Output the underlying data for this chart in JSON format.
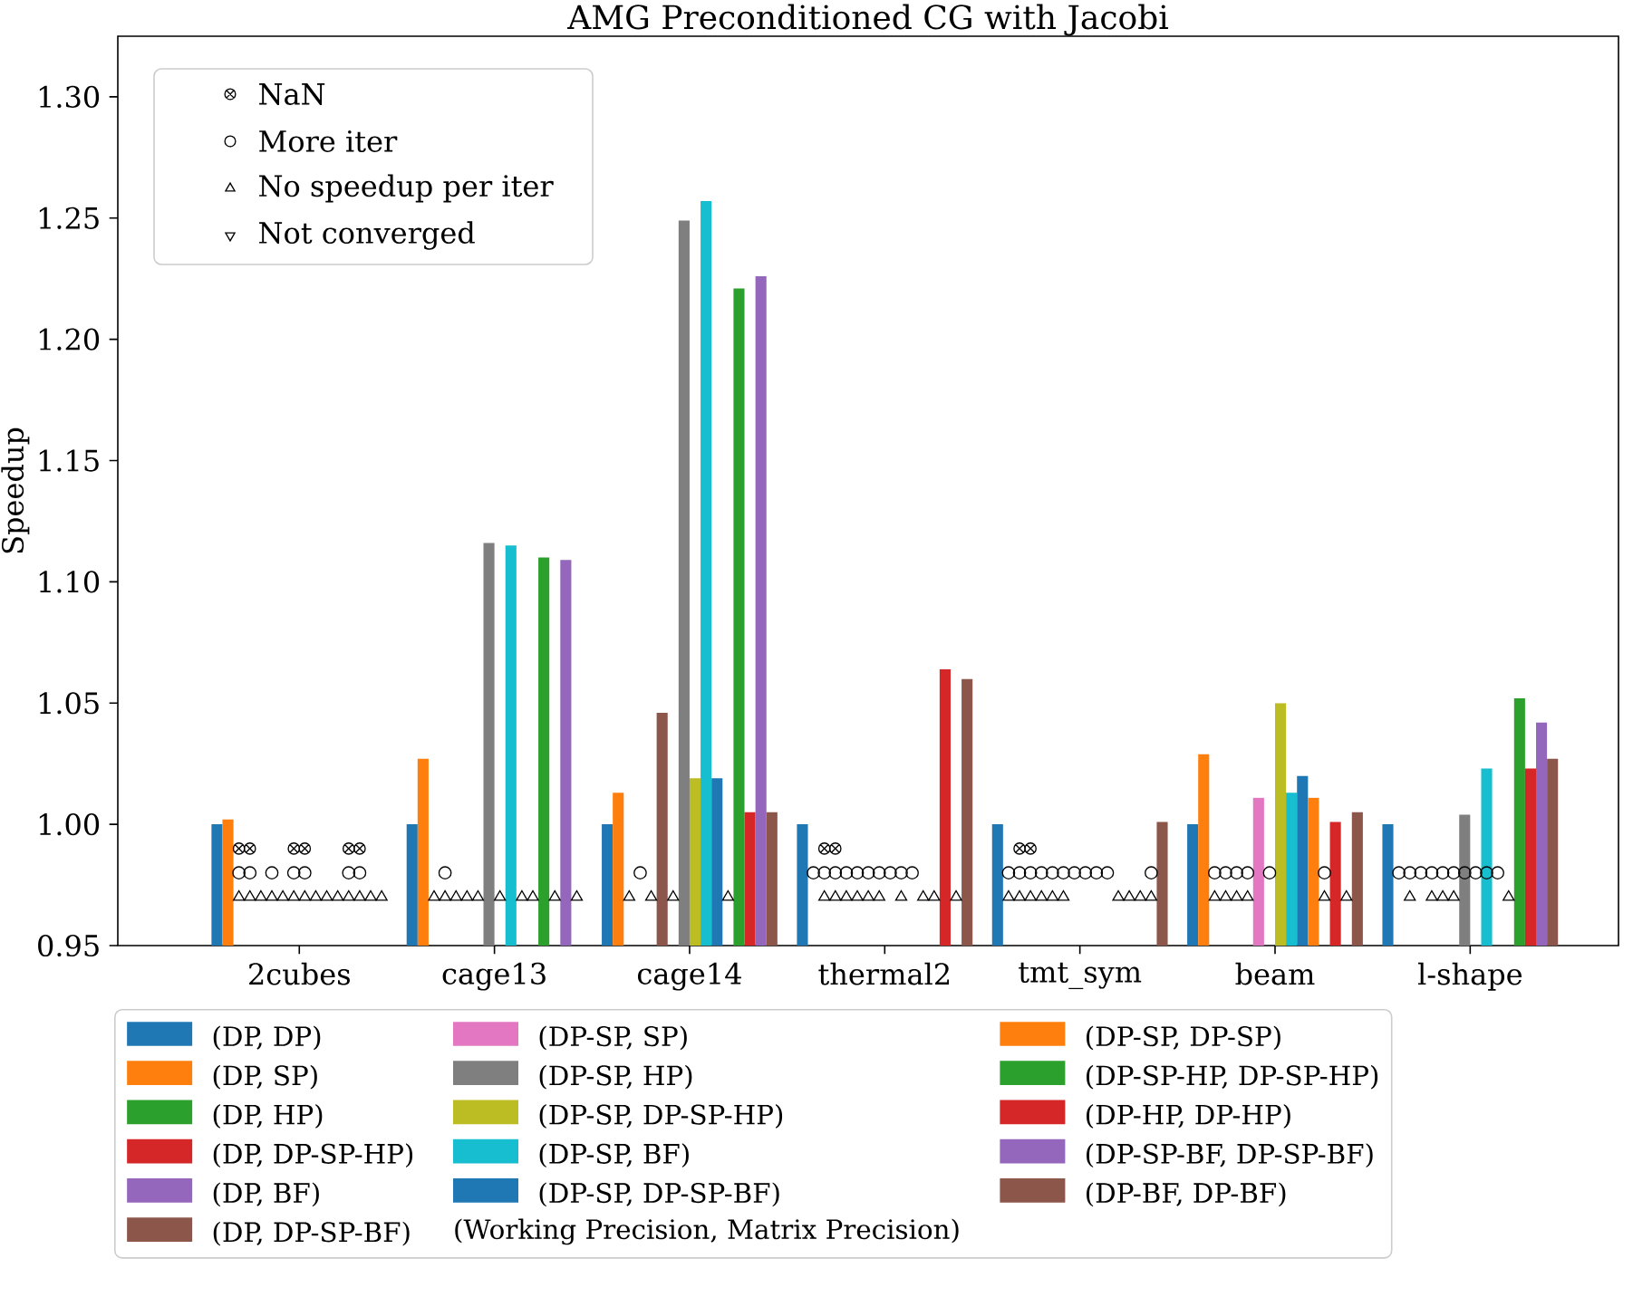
{
  "chart_data": {
    "type": "bar",
    "title": "AMG Preconditioned CG with Jacobi",
    "ylabel": "Speedup",
    "categories": [
      "2cubes",
      "cage13",
      "cage14",
      "thermal2",
      "tmt_sym",
      "beam",
      "l-shape"
    ],
    "ylim": [
      0.95,
      1.325
    ],
    "yticks": [
      {
        "value": 0.95,
        "label": "0.95"
      },
      {
        "value": 1.0,
        "label": "1.00"
      },
      {
        "value": 1.05,
        "label": "1.05"
      },
      {
        "value": 1.1,
        "label": "1.10"
      },
      {
        "value": 1.15,
        "label": "1.15"
      },
      {
        "value": 1.2,
        "label": "1.20"
      },
      {
        "value": 1.25,
        "label": "1.25"
      },
      {
        "value": 1.3,
        "label": "1.30"
      }
    ],
    "legend": "bottom",
    "legend_title": "(Working Precision, Matrix Precision)",
    "series": [
      {
        "name": "(DP, DP)",
        "color": "#1f77b4",
        "values": [
          1.0,
          1.0,
          1.0,
          1.0,
          1.0,
          1.0,
          1.0
        ]
      },
      {
        "name": "(DP, SP)",
        "color": "#ff7f0e",
        "values": [
          1.002,
          1.027,
          1.013,
          null,
          null,
          1.029,
          null
        ]
      },
      {
        "name": "(DP, HP)",
        "color": "#2ca02c",
        "values": [
          null,
          null,
          null,
          null,
          null,
          null,
          null
        ]
      },
      {
        "name": "(DP, DP-SP-HP)",
        "color": "#d62728",
        "values": [
          null,
          null,
          null,
          null,
          null,
          null,
          null
        ]
      },
      {
        "name": "(DP, BF)",
        "color": "#9467bd",
        "values": [
          null,
          null,
          null,
          null,
          null,
          null,
          null
        ]
      },
      {
        "name": "(DP, DP-SP-BF)",
        "color": "#8c564b",
        "values": [
          null,
          null,
          1.046,
          null,
          null,
          null,
          null
        ]
      },
      {
        "name": "(DP-SP, SP)",
        "color": "#e377c2",
        "values": [
          null,
          null,
          null,
          null,
          null,
          1.011,
          null
        ]
      },
      {
        "name": "(DP-SP, HP)",
        "color": "#7f7f7f",
        "values": [
          null,
          1.116,
          1.249,
          null,
          null,
          null,
          1.004
        ]
      },
      {
        "name": "(DP-SP, DP-SP-HP)",
        "color": "#bcbd22",
        "values": [
          null,
          null,
          1.019,
          null,
          null,
          1.05,
          null
        ]
      },
      {
        "name": "(DP-SP, BF)",
        "color": "#17becf",
        "values": [
          null,
          1.115,
          1.257,
          null,
          null,
          1.013,
          1.023
        ]
      },
      {
        "name": "(DP-SP, DP-SP-BF)",
        "color": "#1f77b4",
        "values": [
          null,
          null,
          1.019,
          null,
          null,
          1.02,
          null
        ]
      },
      {
        "name": "(DP-SP, DP-SP)",
        "color": "#ff7f0e",
        "values": [
          null,
          null,
          null,
          null,
          null,
          1.011,
          null
        ]
      },
      {
        "name": "(DP-SP-HP, DP-SP-HP)",
        "color": "#2ca02c",
        "values": [
          null,
          1.11,
          1.221,
          null,
          null,
          null,
          1.052
        ]
      },
      {
        "name": "(DP-HP, DP-HP)",
        "color": "#d62728",
        "values": [
          null,
          null,
          1.005,
          1.064,
          null,
          1.001,
          1.023
        ]
      },
      {
        "name": "(DP-SP-BF, DP-SP-BF)",
        "color": "#9467bd",
        "values": [
          null,
          1.109,
          1.226,
          null,
          null,
          null,
          1.042
        ]
      },
      {
        "name": "(DP-BF, DP-BF)",
        "color": "#8c564b",
        "values": [
          null,
          null,
          1.005,
          1.06,
          1.001,
          1.005,
          1.027
        ]
      },
      {
        "name": "NaN",
        "type": "scatter",
        "marker": "cross",
        "color": "#000000",
        "x": [
          "2cubes",
          "2cubes",
          "2cubes",
          "2cubes",
          "2cubes",
          "2cubes",
          "2cubes",
          "2cubes",
          "2cubes",
          "2cubes",
          "2cubes",
          "2cubes",
          "2cubes",
          "2cubes",
          "thermal2",
          "thermal2",
          "thermal2",
          "thermal2",
          "tmt_sym",
          "tmt_sym",
          "tmt_sym",
          "tmt_sym"
        ],
        "values": [
          null,
          null,
          0.99,
          0.99,
          null,
          null,
          null,
          0.99,
          0.99,
          null,
          null,
          null,
          0.99,
          0.99,
          null,
          null,
          0.99,
          0.99,
          null,
          null,
          0.99,
          0.99
        ]
      },
      {
        "name": "More iter",
        "type": "scatter",
        "marker": "circle",
        "color": "#000000",
        "x": [
          "2cubes",
          "2cubes",
          "2cubes",
          "2cubes",
          "2cubes",
          "2cubes",
          "2cubes",
          "2cubes",
          "2cubes",
          "2cubes",
          "2cubes",
          "2cubes",
          "2cubes",
          "2cubes",
          "cage13",
          "cage13",
          "cage13",
          "cage13",
          "cage14",
          "cage14",
          "cage14",
          "cage14",
          "thermal2",
          "thermal2",
          "thermal2",
          "thermal2",
          "thermal2",
          "thermal2",
          "thermal2",
          "thermal2",
          "thermal2",
          "thermal2",
          "thermal2",
          "tmt_sym",
          "tmt_sym",
          "tmt_sym",
          "tmt_sym",
          "tmt_sym",
          "tmt_sym",
          "tmt_sym",
          "tmt_sym",
          "tmt_sym",
          "tmt_sym",
          "tmt_sym",
          "tmt_sym",
          "tmt_sym",
          "tmt_sym",
          "tmt_sym",
          "beam",
          "beam",
          "beam",
          "beam",
          "beam",
          "beam",
          "beam",
          "beam",
          "beam",
          "beam",
          "beam",
          "beam",
          "beam",
          "l-shape",
          "l-shape",
          "l-shape",
          "l-shape",
          "l-shape",
          "l-shape",
          "l-shape",
          "l-shape",
          "l-shape",
          "l-shape",
          "l-shape"
        ],
        "values": [
          null,
          null,
          0.98,
          0.98,
          null,
          0.98,
          null,
          0.98,
          0.98,
          null,
          null,
          null,
          0.98,
          0.98,
          null,
          null,
          null,
          0.98,
          null,
          null,
          null,
          0.98,
          null,
          0.98,
          0.98,
          0.98,
          0.98,
          0.98,
          0.98,
          0.98,
          0.98,
          0.98,
          0.98,
          null,
          0.98,
          0.98,
          0.98,
          0.98,
          0.98,
          0.98,
          0.98,
          0.98,
          0.98,
          0.98,
          null,
          null,
          null,
          0.98,
          null,
          null,
          0.98,
          0.98,
          0.98,
          0.98,
          null,
          0.98,
          null,
          null,
          null,
          null,
          0.98,
          null,
          0.98,
          0.98,
          0.98,
          0.98,
          0.98,
          0.98,
          0.98,
          0.98,
          0.98,
          0.98
        ]
      },
      {
        "name": "No speedup per iter",
        "type": "scatter",
        "marker": "triangle",
        "color": "#000000",
        "x": [
          "2cubes",
          "2cubes",
          "2cubes",
          "2cubes",
          "2cubes",
          "2cubes",
          "2cubes",
          "2cubes",
          "2cubes",
          "2cubes",
          "2cubes",
          "2cubes",
          "2cubes",
          "2cubes",
          "2cubes",
          "2cubes",
          "cage13",
          "cage13",
          "cage13",
          "cage13",
          "cage13",
          "cage13",
          "cage13",
          "cage13",
          "cage13",
          "cage13",
          "cage13",
          "cage13",
          "cage13",
          "cage13",
          "cage13",
          "cage13",
          "cage14",
          "cage14",
          "cage14",
          "cage14",
          "cage14",
          "cage14",
          "cage14",
          "cage14",
          "cage14",
          "cage14",
          "cage14",
          "cage14",
          "thermal2",
          "thermal2",
          "thermal2",
          "thermal2",
          "thermal2",
          "thermal2",
          "thermal2",
          "thermal2",
          "thermal2",
          "thermal2",
          "thermal2",
          "thermal2",
          "thermal2",
          "thermal2",
          "thermal2",
          "tmt_sym",
          "tmt_sym",
          "tmt_sym",
          "tmt_sym",
          "tmt_sym",
          "tmt_sym",
          "tmt_sym",
          "tmt_sym",
          "tmt_sym",
          "tmt_sym",
          "tmt_sym",
          "tmt_sym",
          "tmt_sym",
          "tmt_sym",
          "tmt_sym",
          "beam",
          "beam",
          "beam",
          "beam",
          "beam",
          "beam",
          "beam",
          "beam",
          "beam",
          "beam",
          "beam",
          "beam",
          "beam",
          "beam",
          "beam",
          "l-shape",
          "l-shape",
          "l-shape",
          "l-shape",
          "l-shape",
          "l-shape",
          "l-shape",
          "l-shape",
          "l-shape",
          "l-shape",
          "l-shape",
          "l-shape"
        ],
        "values": [
          null,
          null,
          0.97,
          0.97,
          0.97,
          0.97,
          0.97,
          0.97,
          0.97,
          0.97,
          0.97,
          0.97,
          0.97,
          0.97,
          0.97,
          0.97,
          null,
          null,
          0.97,
          0.97,
          0.97,
          0.97,
          0.97,
          null,
          0.97,
          null,
          0.97,
          0.97,
          null,
          0.97,
          null,
          0.97,
          null,
          null,
          0.97,
          null,
          0.97,
          null,
          0.97,
          null,
          null,
          null,
          null,
          0.97,
          null,
          null,
          0.97,
          0.97,
          0.97,
          0.97,
          0.97,
          0.97,
          null,
          0.97,
          null,
          0.97,
          0.97,
          null,
          0.97,
          null,
          0.97,
          0.97,
          0.97,
          0.97,
          0.97,
          0.97,
          null,
          null,
          null,
          null,
          0.97,
          0.97,
          0.97,
          0.97,
          null,
          null,
          0.97,
          0.97,
          0.97,
          0.97,
          null,
          null,
          null,
          null,
          null,
          null,
          0.97,
          null,
          0.97,
          null,
          null,
          0.97,
          null,
          0.97,
          0.97,
          0.97,
          null,
          null,
          null,
          null,
          0.97
        ]
      },
      {
        "name": "Not converged",
        "type": "scatter",
        "marker": "triangle_down",
        "color": "#000000",
        "values": [
          null,
          null,
          null,
          null,
          null,
          null,
          null
        ]
      }
    ]
  }
}
